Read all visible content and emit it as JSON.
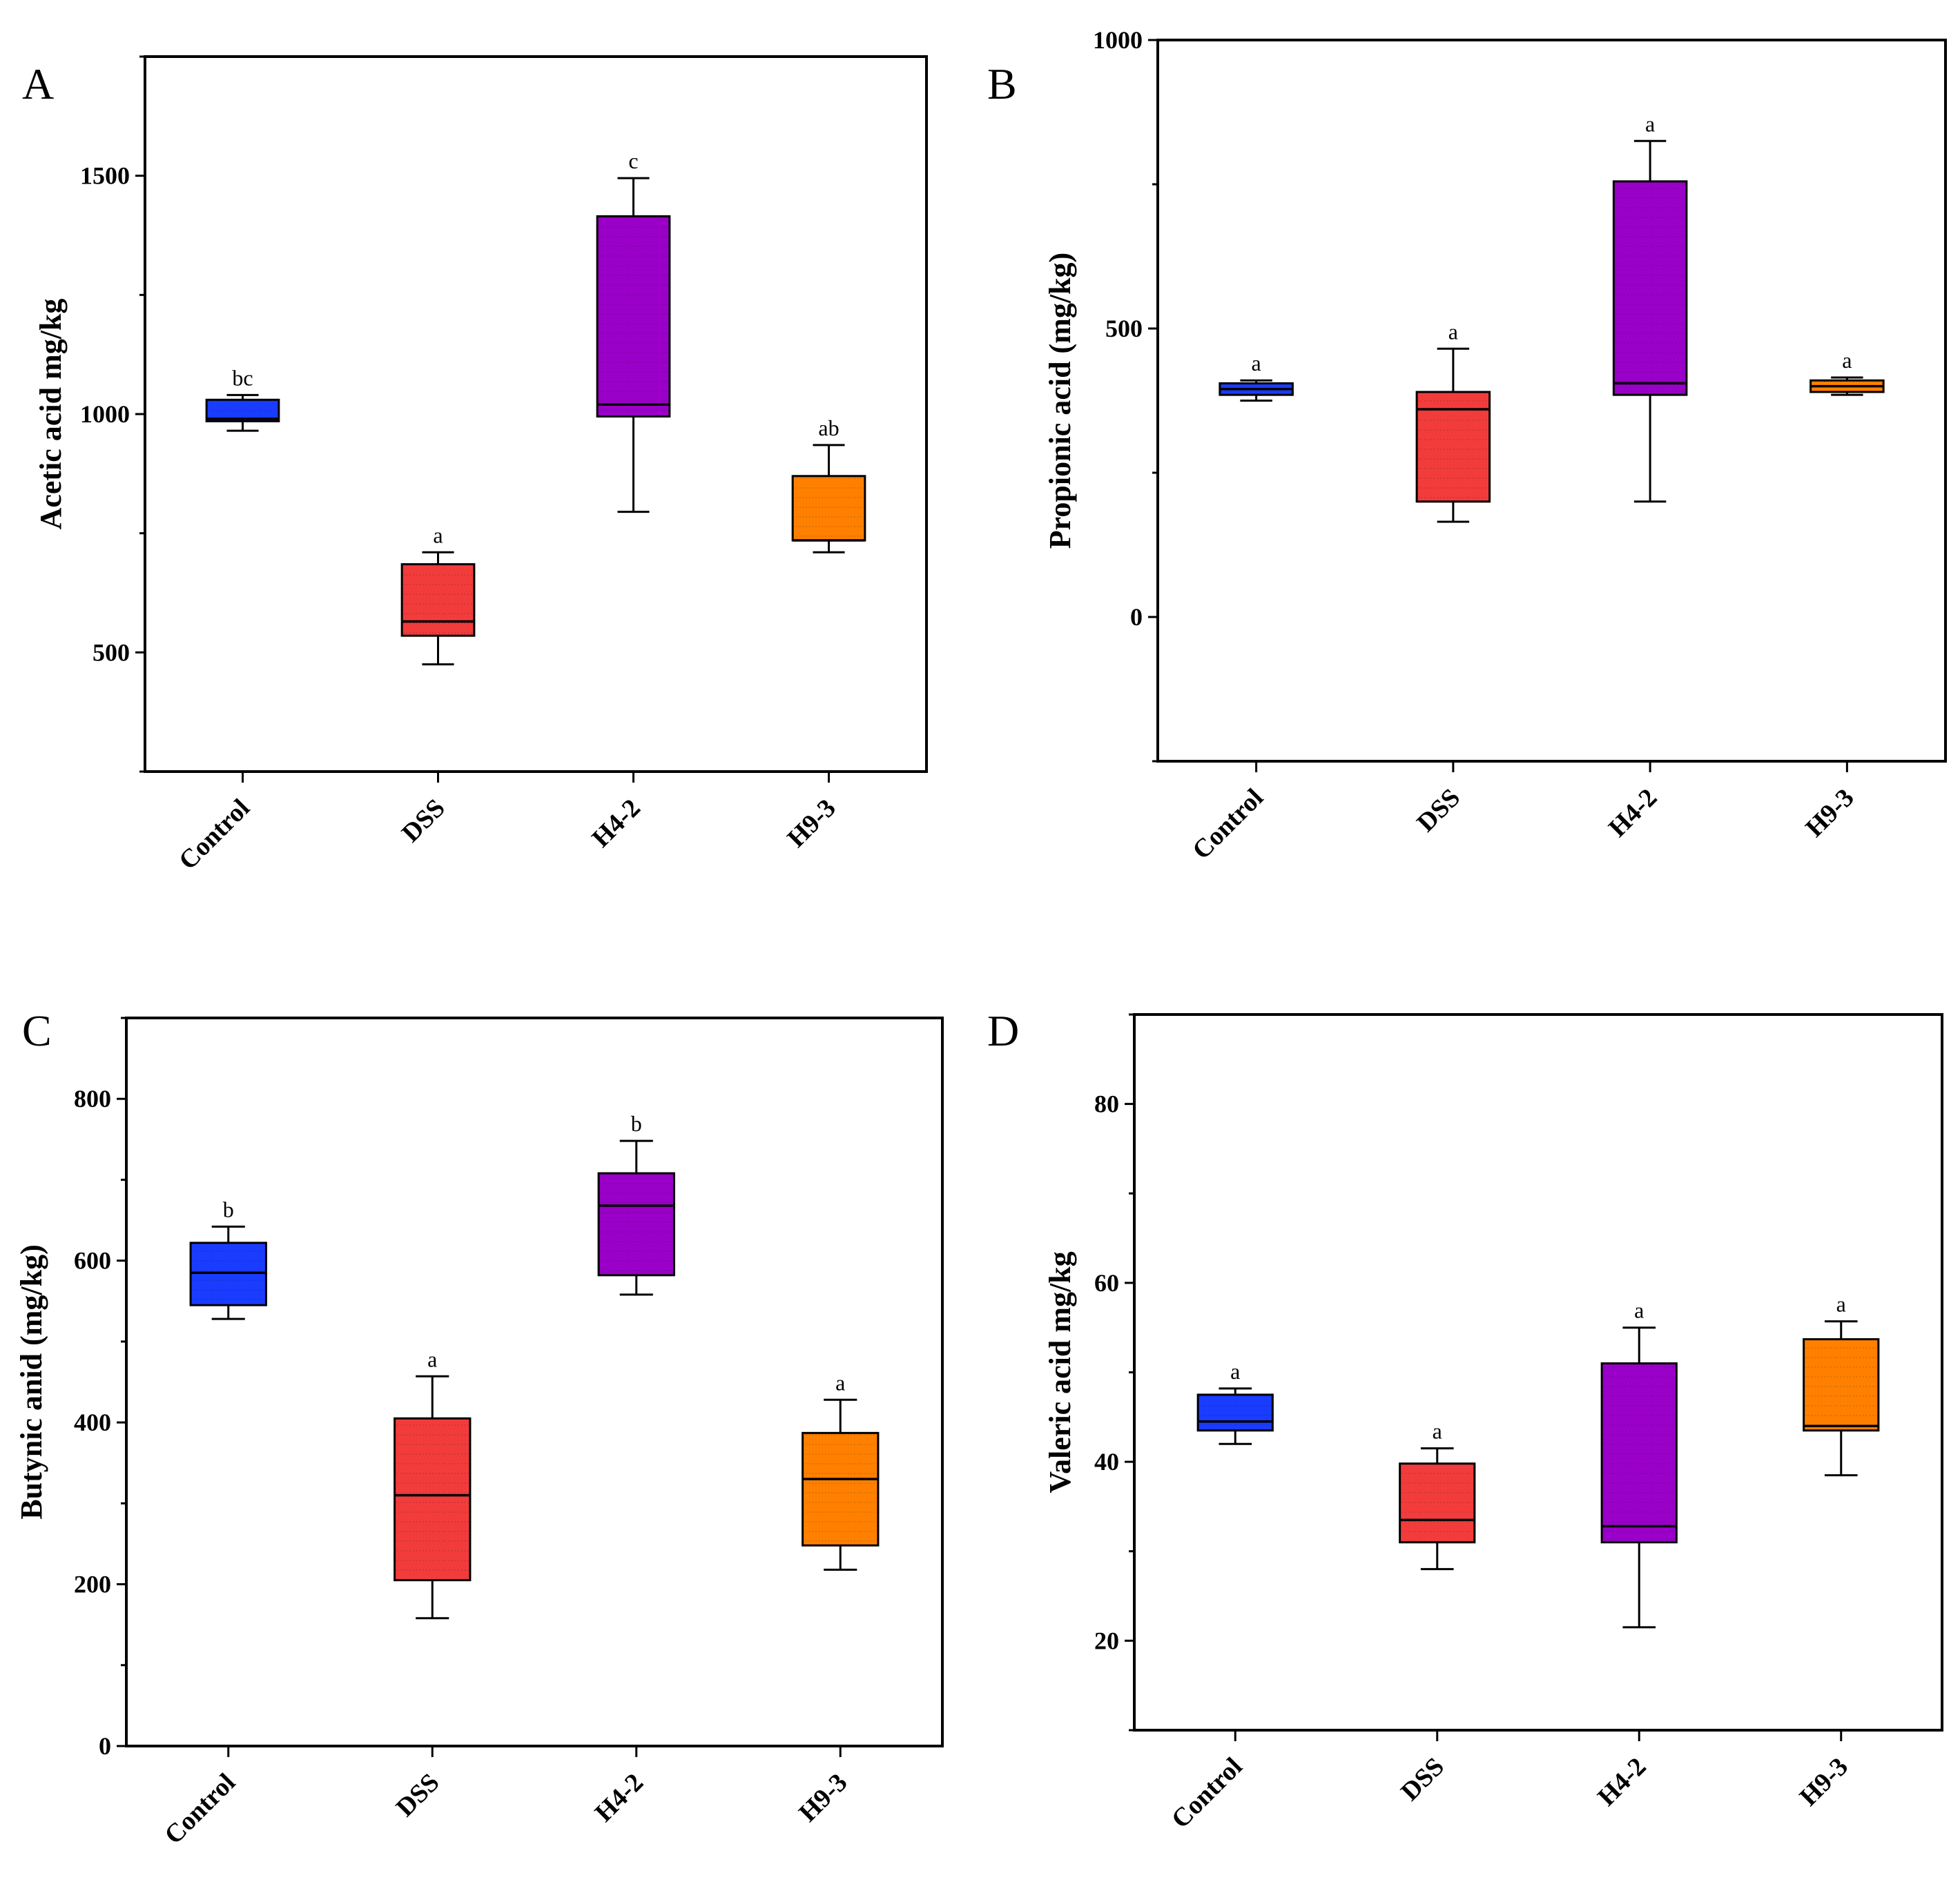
{
  "chart_data": [
    {
      "type": "box",
      "panel": "A",
      "ylabel": "Acetic acid mg/kg",
      "ylim": [
        250,
        1750
      ],
      "yticks": [
        500,
        1000,
        1500
      ],
      "categories": [
        "Control",
        "DSS",
        "H4-2",
        "H9-3"
      ],
      "colors": [
        "#1a3cff",
        "#f23c3c",
        "#9a00c8",
        "#ff8000"
      ],
      "boxes": [
        {
          "min": 965,
          "q1": 985,
          "median": 990,
          "q3": 1030,
          "max": 1040,
          "label": "bc"
        },
        {
          "min": 475,
          "q1": 535,
          "median": 565,
          "q3": 685,
          "max": 710,
          "label": "a"
        },
        {
          "min": 795,
          "q1": 995,
          "median": 1020,
          "q3": 1415,
          "max": 1495,
          "label": "c"
        },
        {
          "min": 710,
          "q1": 735,
          "median": 735,
          "q3": 870,
          "max": 935,
          "label": "ab"
        }
      ]
    },
    {
      "type": "box",
      "panel": "B",
      "ylabel": "Propionic acid (mg/kg)",
      "ylim": [
        -250,
        1000
      ],
      "yticks": [
        0,
        500,
        1000
      ],
      "categories": [
        "Control",
        "DSS",
        "H4-2",
        "H9-3"
      ],
      "colors": [
        "#1a3cff",
        "#f23c3c",
        "#9a00c8",
        "#ff8000"
      ],
      "boxes": [
        {
          "min": 375,
          "q1": 385,
          "median": 395,
          "q3": 405,
          "max": 410,
          "label": "a"
        },
        {
          "min": 165,
          "q1": 200,
          "median": 360,
          "q3": 390,
          "max": 465,
          "label": "a"
        },
        {
          "min": 200,
          "q1": 385,
          "median": 405,
          "q3": 755,
          "max": 825,
          "label": "a"
        },
        {
          "min": 385,
          "q1": 390,
          "median": 400,
          "q3": 410,
          "max": 415,
          "label": "a"
        }
      ]
    },
    {
      "type": "box",
      "panel": "C",
      "ylabel": "Butynic anid (mg/kg)",
      "ylim": [
        0,
        900
      ],
      "yticks": [
        0,
        200,
        400,
        600,
        800
      ],
      "categories": [
        "Control",
        "DSS",
        "H4-2",
        "H9-3"
      ],
      "colors": [
        "#1a3cff",
        "#f23c3c",
        "#9a00c8",
        "#ff8000"
      ],
      "boxes": [
        {
          "min": 528,
          "q1": 545,
          "median": 585,
          "q3": 622,
          "max": 642,
          "label": "b"
        },
        {
          "min": 158,
          "q1": 205,
          "median": 310,
          "q3": 405,
          "max": 457,
          "label": "a"
        },
        {
          "min": 558,
          "q1": 582,
          "median": 668,
          "q3": 708,
          "max": 748,
          "label": "b"
        },
        {
          "min": 218,
          "q1": 248,
          "median": 330,
          "q3": 387,
          "max": 428,
          "label": "a"
        }
      ]
    },
    {
      "type": "box",
      "panel": "D",
      "ylabel": "Valeric acid mg/kg",
      "ylim": [
        10,
        90
      ],
      "yticks": [
        20,
        40,
        60,
        80
      ],
      "categories": [
        "Control",
        "DSS",
        "H4-2",
        "H9-3"
      ],
      "colors": [
        "#1a3cff",
        "#f23c3c",
        "#9a00c8",
        "#ff8000"
      ],
      "boxes": [
        {
          "min": 42,
          "q1": 43.5,
          "median": 44.5,
          "q3": 47.5,
          "max": 48.2,
          "label": "a"
        },
        {
          "min": 28,
          "q1": 31,
          "median": 33.5,
          "q3": 39.8,
          "max": 41.5,
          "label": "a"
        },
        {
          "min": 21.5,
          "q1": 31,
          "median": 32.8,
          "q3": 51,
          "max": 55,
          "label": "a"
        },
        {
          "min": 38.5,
          "q1": 43.5,
          "median": 44,
          "q3": 53.7,
          "max": 55.7,
          "label": "a"
        }
      ]
    }
  ]
}
